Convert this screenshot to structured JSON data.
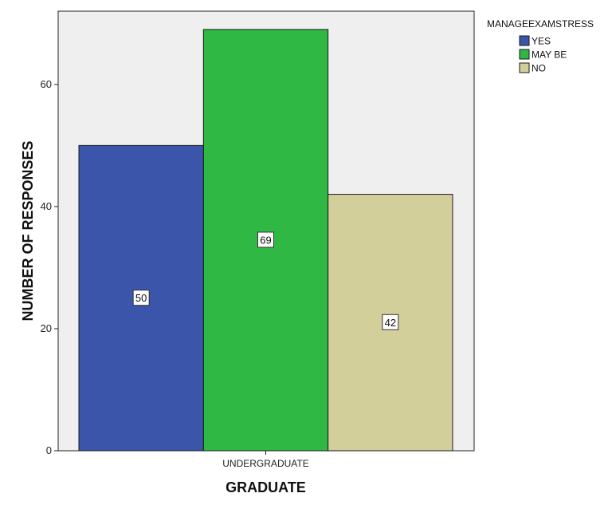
{
  "chart_data": {
    "type": "bar",
    "categories": [
      "UNDERGRADUATE"
    ],
    "series": [
      {
        "name": "YES",
        "values": [
          50
        ],
        "color": "#3a55aa"
      },
      {
        "name": "MAY BE",
        "values": [
          69
        ],
        "color": "#2fb843"
      },
      {
        "name": "NO",
        "values": [
          42
        ],
        "color": "#d3cf9b"
      }
    ],
    "xlabel": "GRADUATE",
    "ylabel": "NUMBER OF RESPONSES",
    "ylim": [
      0,
      72
    ],
    "yticks": [
      0,
      20,
      40,
      60
    ],
    "legend": {
      "title": "MANAGEEXAMSTRESS",
      "position": "top-right"
    },
    "data_labels": true,
    "plot_background": "#efefef"
  }
}
